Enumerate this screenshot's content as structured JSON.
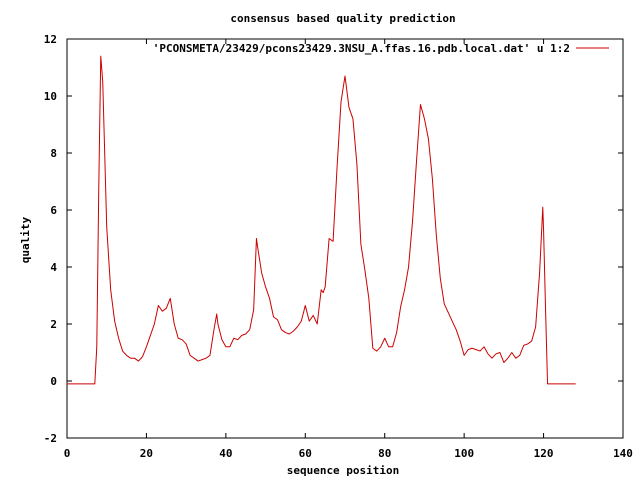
{
  "chart_data": {
    "type": "line",
    "title": "consensus based quality prediction",
    "xlabel": "sequence position",
    "ylabel": "quality",
    "xlim": [
      0,
      140
    ],
    "ylim": [
      -2,
      12
    ],
    "xticks": [
      "0",
      "20",
      "40",
      "60",
      "80",
      "100",
      "120",
      "140"
    ],
    "yticks": [
      "-2",
      "0",
      "2",
      "4",
      "6",
      "8",
      "10",
      "12"
    ],
    "grid": false,
    "legend_position": "top-right",
    "series": [
      {
        "name": "'PCONSMETA/23429/pcons23429.3NSU_A.ffas.16.pdb.local.dat' u 1:2",
        "color": "#cc0000",
        "points": [
          [
            0,
            -0.1
          ],
          [
            1,
            -0.1
          ],
          [
            2,
            -0.1
          ],
          [
            3,
            -0.1
          ],
          [
            4,
            -0.1
          ],
          [
            5,
            -0.1
          ],
          [
            6,
            -0.1
          ],
          [
            7,
            -0.1
          ],
          [
            7.5,
            1.2
          ],
          [
            8,
            6.8
          ],
          [
            8.5,
            11.4
          ],
          [
            9,
            10.5
          ],
          [
            10,
            5.4
          ],
          [
            11,
            3.2
          ],
          [
            12,
            2.1
          ],
          [
            13,
            1.5
          ],
          [
            14,
            1.05
          ],
          [
            15,
            0.9
          ],
          [
            16,
            0.8
          ],
          [
            17,
            0.8
          ],
          [
            18,
            0.7
          ],
          [
            19,
            0.85
          ],
          [
            20,
            1.2
          ],
          [
            21,
            1.6
          ],
          [
            22,
            2.0
          ],
          [
            23,
            2.65
          ],
          [
            24,
            2.45
          ],
          [
            25,
            2.55
          ],
          [
            26,
            2.9
          ],
          [
            27,
            2.0
          ],
          [
            28,
            1.5
          ],
          [
            29,
            1.45
          ],
          [
            30,
            1.3
          ],
          [
            31,
            0.9
          ],
          [
            32,
            0.8
          ],
          [
            33,
            0.7
          ],
          [
            34,
            0.75
          ],
          [
            35,
            0.8
          ],
          [
            36,
            0.9
          ],
          [
            37,
            1.8
          ],
          [
            37.7,
            2.35
          ],
          [
            38,
            2.0
          ],
          [
            39,
            1.45
          ],
          [
            40,
            1.2
          ],
          [
            41,
            1.2
          ],
          [
            42,
            1.5
          ],
          [
            43,
            1.45
          ],
          [
            44,
            1.6
          ],
          [
            45,
            1.65
          ],
          [
            46,
            1.8
          ],
          [
            47,
            2.5
          ],
          [
            47.7,
            5.0
          ],
          [
            48,
            4.7
          ],
          [
            49,
            3.8
          ],
          [
            50,
            3.3
          ],
          [
            51,
            2.9
          ],
          [
            52,
            2.25
          ],
          [
            53,
            2.15
          ],
          [
            54,
            1.8
          ],
          [
            55,
            1.7
          ],
          [
            56,
            1.65
          ],
          [
            57,
            1.75
          ],
          [
            58,
            1.9
          ],
          [
            59,
            2.1
          ],
          [
            60,
            2.65
          ],
          [
            61,
            2.1
          ],
          [
            62,
            2.3
          ],
          [
            63,
            2.0
          ],
          [
            64,
            3.2
          ],
          [
            64.5,
            3.1
          ],
          [
            65,
            3.3
          ],
          [
            66,
            5.0
          ],
          [
            67,
            4.9
          ],
          [
            68,
            7.5
          ],
          [
            69,
            9.8
          ],
          [
            70,
            10.7
          ],
          [
            71,
            9.6
          ],
          [
            72,
            9.2
          ],
          [
            73,
            7.6
          ],
          [
            74,
            4.8
          ],
          [
            75,
            3.9
          ],
          [
            76,
            2.9
          ],
          [
            77,
            1.15
          ],
          [
            78,
            1.05
          ],
          [
            79,
            1.2
          ],
          [
            80,
            1.5
          ],
          [
            81,
            1.2
          ],
          [
            82,
            1.2
          ],
          [
            83,
            1.7
          ],
          [
            84,
            2.6
          ],
          [
            85,
            3.2
          ],
          [
            86,
            4.0
          ],
          [
            87,
            5.6
          ],
          [
            88,
            7.7
          ],
          [
            89,
            9.7
          ],
          [
            90,
            9.2
          ],
          [
            91,
            8.5
          ],
          [
            92,
            7.1
          ],
          [
            93,
            5.1
          ],
          [
            94,
            3.6
          ],
          [
            95,
            2.7
          ],
          [
            96,
            2.4
          ],
          [
            97,
            2.1
          ],
          [
            98,
            1.8
          ],
          [
            99,
            1.4
          ],
          [
            100,
            0.9
          ],
          [
            101,
            1.1
          ],
          [
            102,
            1.15
          ],
          [
            103,
            1.1
          ],
          [
            104,
            1.05
          ],
          [
            105,
            1.2
          ],
          [
            106,
            0.95
          ],
          [
            107,
            0.8
          ],
          [
            108,
            0.95
          ],
          [
            109,
            1.0
          ],
          [
            110,
            0.65
          ],
          [
            111,
            0.8
          ],
          [
            112,
            1.0
          ],
          [
            113,
            0.8
          ],
          [
            114,
            0.9
          ],
          [
            115,
            1.25
          ],
          [
            116,
            1.3
          ],
          [
            117,
            1.4
          ],
          [
            118,
            1.9
          ],
          [
            119,
            3.8
          ],
          [
            119.8,
            6.1
          ],
          [
            120,
            5.3
          ],
          [
            120.5,
            2.5
          ],
          [
            121,
            -0.1
          ],
          [
            122,
            -0.1
          ],
          [
            124,
            -0.1
          ],
          [
            126,
            -0.1
          ],
          [
            128,
            -0.1
          ]
        ]
      }
    ]
  }
}
